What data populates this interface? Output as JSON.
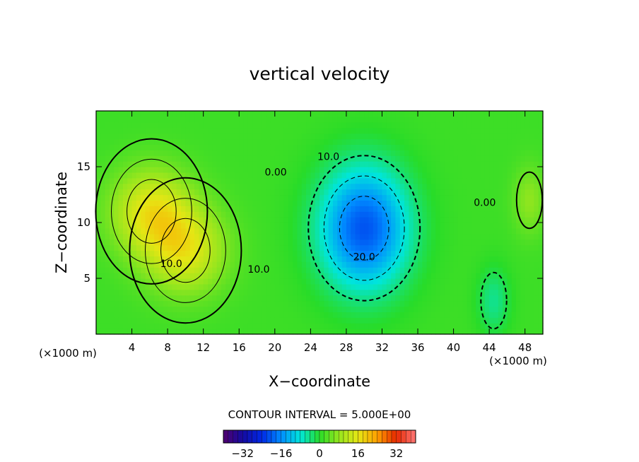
{
  "chart_data": {
    "type": "heatmap",
    "title": "vertical velocity",
    "xlabel": "X−coordinate",
    "ylabel": "Z−coordinate",
    "x_unit_left": "(×1000 m)",
    "x_unit_right": "(×1000 m)",
    "xlim": [
      0,
      50
    ],
    "ylim": [
      0,
      20
    ],
    "x_ticks": [
      4,
      8,
      12,
      16,
      20,
      24,
      28,
      32,
      36,
      40,
      44,
      48
    ],
    "y_ticks": [
      5,
      10,
      15
    ],
    "contour_interval_text": "CONTOUR INTERVAL = 5.000E+00",
    "contour_labels": [
      {
        "text": "10.0",
        "x": 8.4,
        "y": 6.0
      },
      {
        "text": "10.0",
        "x": 18.2,
        "y": 5.5
      },
      {
        "text": "0.00",
        "x": 20.1,
        "y": 14.2
      },
      {
        "text": "10.0",
        "x": 26.0,
        "y": 15.6
      },
      {
        "text": "20.0",
        "x": 30.0,
        "y": 6.6
      },
      {
        "text": "0.00",
        "x": 43.5,
        "y": 11.5
      }
    ],
    "extrema": [
      {
        "kind": "max",
        "x": 6.2,
        "y": 11.0,
        "value": 14
      },
      {
        "kind": "max",
        "x": 10.0,
        "y": 7.5,
        "value": 13
      },
      {
        "kind": "min",
        "x": 30.0,
        "y": 9.5,
        "value": -22
      },
      {
        "kind": "max",
        "x": 48.5,
        "y": 12.0,
        "value": 6
      },
      {
        "kind": "min",
        "x": 44.5,
        "y": 3.0,
        "value": -6
      }
    ],
    "colorbar": {
      "range": [
        -40,
        40
      ],
      "ticks": [
        -32,
        -16,
        0,
        16,
        32
      ],
      "tick_labels": [
        "−32",
        "−16",
        "0",
        "16",
        "32"
      ]
    }
  },
  "colors": {
    "background": "#ffffff",
    "axis": "#000000"
  }
}
